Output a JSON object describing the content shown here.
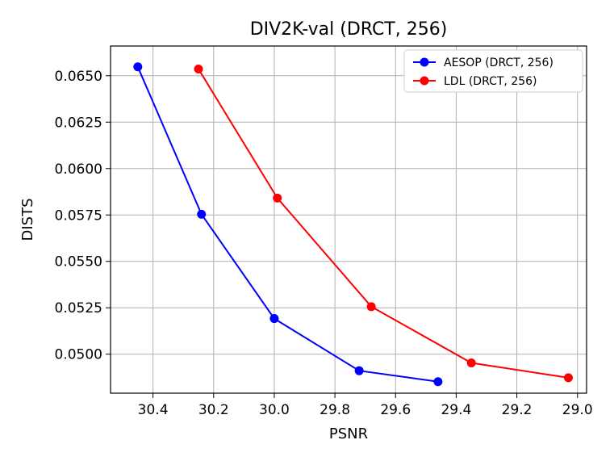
{
  "chart_data": {
    "type": "line",
    "title": "DIV2K-val (DRCT, 256)",
    "xlabel": "PSNR",
    "ylabel": "DISTS",
    "x_inverted": true,
    "xlim": [
      30.54,
      28.97
    ],
    "ylim": [
      0.0479,
      0.0666
    ],
    "xticks": [
      30.4,
      30.2,
      30.0,
      29.8,
      29.6,
      29.4,
      29.2,
      29.0
    ],
    "xtick_labels": [
      "30.4",
      "30.2",
      "30.0",
      "29.8",
      "29.6",
      "29.4",
      "29.2",
      "29.0"
    ],
    "yticks": [
      0.05,
      0.0525,
      0.055,
      0.0575,
      0.06,
      0.0625,
      0.065
    ],
    "ytick_labels": [
      "0.0500",
      "0.0525",
      "0.0550",
      "0.0575",
      "0.0600",
      "0.0625",
      "0.0650"
    ],
    "grid": true,
    "legend_position": "upper-right",
    "series": [
      {
        "name": "AESOP (DRCT, 256)",
        "color": "#0000ff",
        "x": [
          30.45,
          30.24,
          30.0,
          29.72,
          29.46
        ],
        "y": [
          0.06548,
          0.05754,
          0.05192,
          0.04911,
          0.04852
        ]
      },
      {
        "name": "LDL (DRCT, 256)",
        "color": "#ff0000",
        "x": [
          30.25,
          29.99,
          29.68,
          29.35,
          29.03
        ],
        "y": [
          0.06536,
          0.05841,
          0.05256,
          0.04953,
          0.04873
        ]
      }
    ]
  }
}
